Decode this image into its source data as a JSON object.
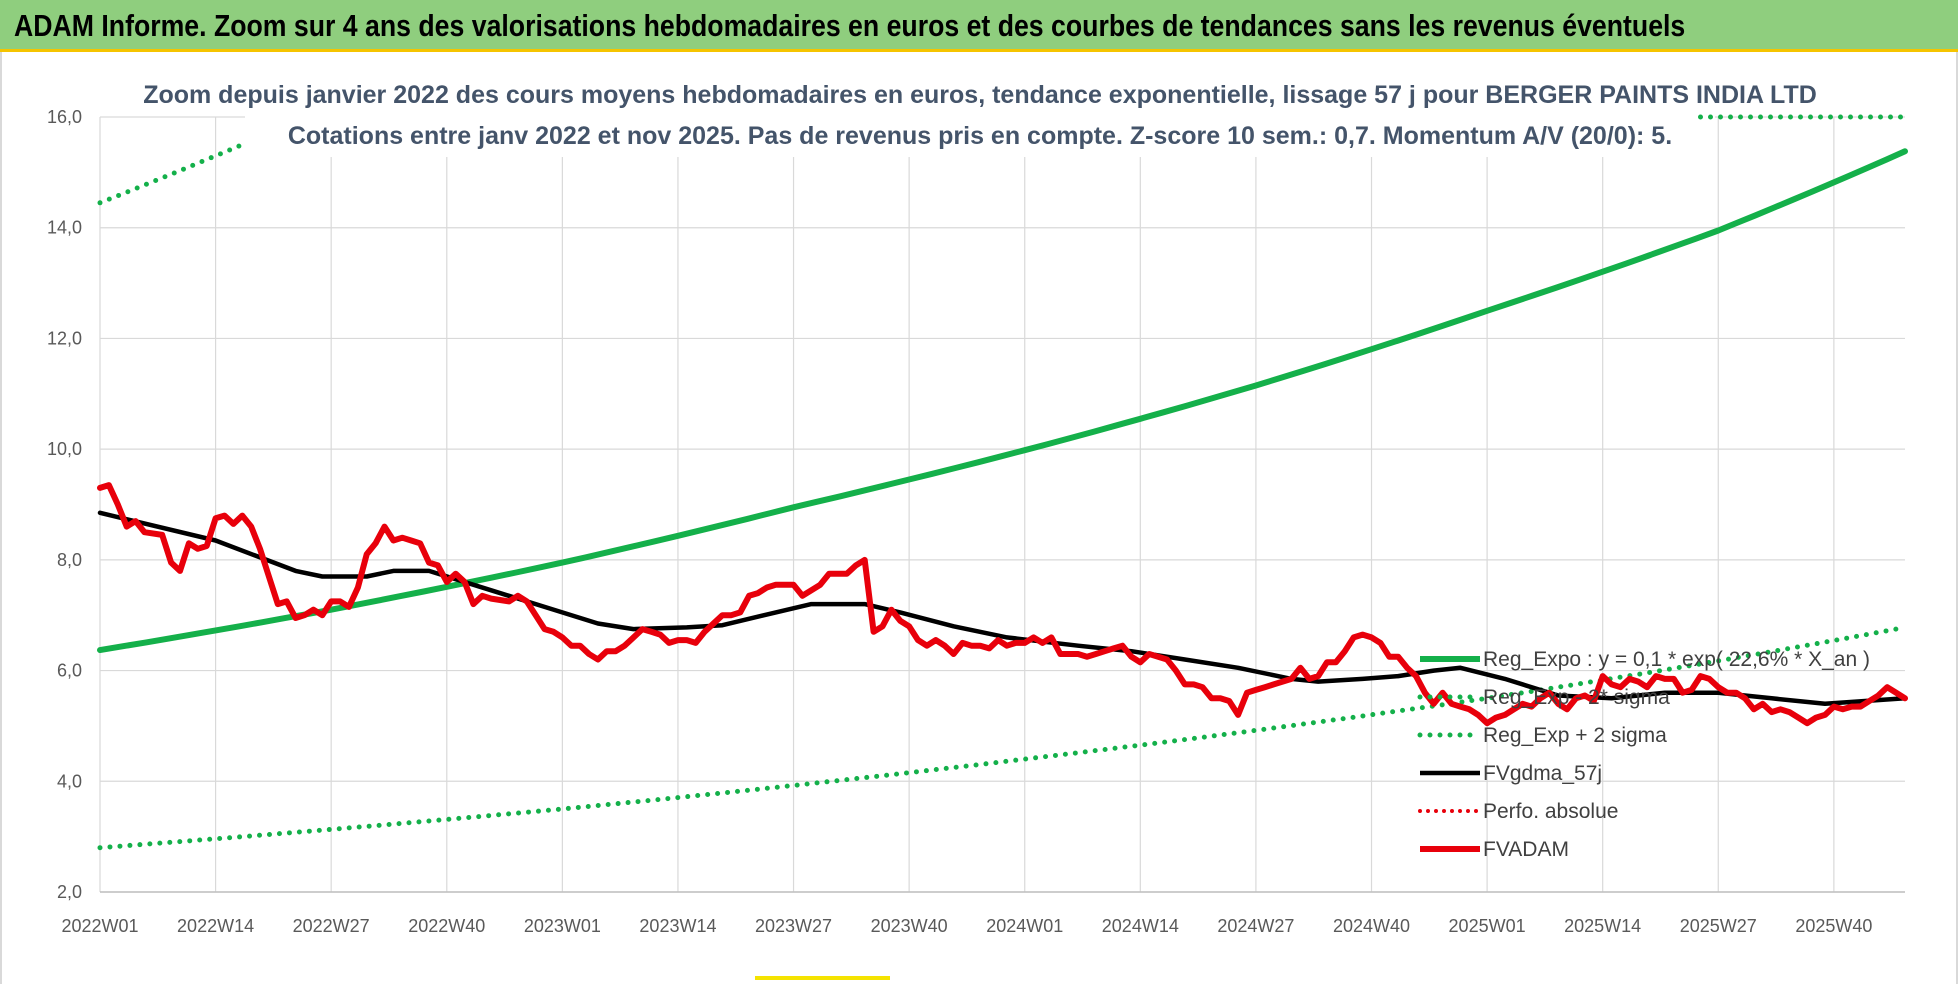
{
  "banner": {
    "title": "ADAM Informe. Zoom sur 4 ans des valorisations hebdomadaires en euros et des courbes de tendances sans les revenus éventuels"
  },
  "colors": {
    "banner_bg": "#8fce7e",
    "banner_border": "#f5c400",
    "green": "#14b04a",
    "red": "#e8000b",
    "black": "#000000",
    "subtitle": "#44546a",
    "grid": "#d9d9d9"
  },
  "chart_data": {
    "type": "line",
    "title_line1": "Zoom depuis janvier 2022 des cours moyens hebdomadaires en euros, tendance exponentielle, lissage 57 j pour BERGER PAINTS INDIA LTD",
    "title_line2": "Cotations entre janv 2022 et nov 2025. Pas de revenus pris en compte. Z-score 10 sem.: 0,7. Momentum A/V (20/0): 5.",
    "ylim": [
      2,
      16
    ],
    "y_ticks": [
      "2,0",
      "4,0",
      "6,0",
      "8,0",
      "10,0",
      "12,0",
      "14,0",
      "16,0"
    ],
    "x_range_weeks": [
      0,
      203
    ],
    "x_ticks": [
      "2022W01",
      "2022W14",
      "2022W27",
      "2022W40",
      "2023W01",
      "2023W14",
      "2023W27",
      "2023W40",
      "2024W01",
      "2024W14",
      "2024W27",
      "2024W40",
      "2025W01",
      "2025W14",
      "2025W27",
      "2025W40"
    ],
    "legend_position": "right",
    "series": [
      {
        "name": "Reg_Expo : y = 0,1 * exp( 22,6% * X_an )",
        "style": "solid-green",
        "points": [
          [
            0,
            6.37
          ],
          [
            26,
            7.1
          ],
          [
            52,
            7.95
          ],
          [
            78,
            8.95
          ],
          [
            104,
            9.98
          ],
          [
            130,
            11.15
          ],
          [
            156,
            12.5
          ],
          [
            182,
            13.95
          ],
          [
            203,
            15.38
          ]
        ]
      },
      {
        "name": "Reg_Exp - 2* sigma",
        "style": "dotted-green",
        "points": [
          [
            0,
            2.8
          ],
          [
            52,
            3.5
          ],
          [
            104,
            4.4
          ],
          [
            156,
            5.5
          ],
          [
            203,
            6.78
          ]
        ]
      },
      {
        "name": "Reg_Exp + 2 sigma",
        "style": "dotted-green",
        "points": [
          [
            0,
            14.45
          ],
          [
            16,
            15.5
          ]
        ],
        "points_upper_segment": [
          [
            180,
            16.0
          ],
          [
            203,
            16.0
          ]
        ]
      },
      {
        "name": "FVgdma_57j",
        "style": "solid-black",
        "points": [
          [
            0,
            8.85
          ],
          [
            13,
            8.35
          ],
          [
            22,
            7.8
          ],
          [
            25,
            7.7
          ],
          [
            30,
            7.7
          ],
          [
            33,
            7.8
          ],
          [
            37,
            7.8
          ],
          [
            44,
            7.45
          ],
          [
            50,
            7.15
          ],
          [
            56,
            6.85
          ],
          [
            60,
            6.75
          ],
          [
            66,
            6.78
          ],
          [
            70,
            6.82
          ],
          [
            76,
            7.05
          ],
          [
            80,
            7.2
          ],
          [
            86,
            7.2
          ],
          [
            90,
            7.05
          ],
          [
            96,
            6.8
          ],
          [
            102,
            6.6
          ],
          [
            110,
            6.45
          ],
          [
            116,
            6.35
          ],
          [
            122,
            6.2
          ],
          [
            128,
            6.05
          ],
          [
            134,
            5.85
          ],
          [
            137,
            5.8
          ],
          [
            142,
            5.85
          ],
          [
            146,
            5.9
          ],
          [
            150,
            6.0
          ],
          [
            153,
            6.05
          ],
          [
            158,
            5.85
          ],
          [
            164,
            5.55
          ],
          [
            170,
            5.5
          ],
          [
            176,
            5.6
          ],
          [
            182,
            5.6
          ],
          [
            188,
            5.5
          ],
          [
            194,
            5.4
          ],
          [
            203,
            5.5
          ]
        ]
      },
      {
        "name": "Perfo. absolue",
        "style": "dotted-red",
        "points": []
      },
      {
        "name": "FVADAM",
        "style": "solid-red",
        "points": [
          [
            0,
            9.3
          ],
          [
            1,
            9.35
          ],
          [
            2,
            9.0
          ],
          [
            3,
            8.6
          ],
          [
            4,
            8.7
          ],
          [
            5,
            8.5
          ],
          [
            7,
            8.45
          ],
          [
            8,
            7.95
          ],
          [
            9,
            7.8
          ],
          [
            10,
            8.3
          ],
          [
            11,
            8.2
          ],
          [
            12,
            8.25
          ],
          [
            13,
            8.75
          ],
          [
            14,
            8.8
          ],
          [
            15,
            8.65
          ],
          [
            16,
            8.8
          ],
          [
            17,
            8.6
          ],
          [
            18,
            8.2
          ],
          [
            19,
            7.7
          ],
          [
            20,
            7.2
          ],
          [
            21,
            7.25
          ],
          [
            22,
            6.95
          ],
          [
            23,
            7.0
          ],
          [
            24,
            7.1
          ],
          [
            25,
            7.0
          ],
          [
            26,
            7.25
          ],
          [
            27,
            7.25
          ],
          [
            28,
            7.15
          ],
          [
            29,
            7.5
          ],
          [
            30,
            8.1
          ],
          [
            31,
            8.3
          ],
          [
            32,
            8.6
          ],
          [
            33,
            8.35
          ],
          [
            34,
            8.4
          ],
          [
            35,
            8.35
          ],
          [
            36,
            8.3
          ],
          [
            37,
            7.95
          ],
          [
            38,
            7.9
          ],
          [
            39,
            7.6
          ],
          [
            40,
            7.75
          ],
          [
            41,
            7.6
          ],
          [
            42,
            7.2
          ],
          [
            43,
            7.35
          ],
          [
            44,
            7.3
          ],
          [
            46,
            7.25
          ],
          [
            47,
            7.35
          ],
          [
            48,
            7.25
          ],
          [
            49,
            7.0
          ],
          [
            50,
            6.75
          ],
          [
            51,
            6.7
          ],
          [
            52,
            6.6
          ],
          [
            53,
            6.45
          ],
          [
            54,
            6.45
          ],
          [
            55,
            6.3
          ],
          [
            56,
            6.2
          ],
          [
            57,
            6.35
          ],
          [
            58,
            6.35
          ],
          [
            59,
            6.45
          ],
          [
            60,
            6.6
          ],
          [
            61,
            6.75
          ],
          [
            62,
            6.7
          ],
          [
            63,
            6.65
          ],
          [
            64,
            6.5
          ],
          [
            65,
            6.55
          ],
          [
            66,
            6.55
          ],
          [
            67,
            6.5
          ],
          [
            68,
            6.7
          ],
          [
            69,
            6.85
          ],
          [
            70,
            7.0
          ],
          [
            71,
            7.0
          ],
          [
            72,
            7.05
          ],
          [
            73,
            7.35
          ],
          [
            74,
            7.4
          ],
          [
            75,
            7.5
          ],
          [
            76,
            7.55
          ],
          [
            77,
            7.55
          ],
          [
            78,
            7.55
          ],
          [
            79,
            7.35
          ],
          [
            80,
            7.45
          ],
          [
            81,
            7.55
          ],
          [
            82,
            7.75
          ],
          [
            83,
            7.75
          ],
          [
            84,
            7.75
          ],
          [
            85,
            7.9
          ],
          [
            86,
            8.0
          ],
          [
            87,
            6.7
          ],
          [
            88,
            6.8
          ],
          [
            89,
            7.1
          ],
          [
            90,
            6.9
          ],
          [
            91,
            6.8
          ],
          [
            92,
            6.55
          ],
          [
            93,
            6.45
          ],
          [
            94,
            6.55
          ],
          [
            95,
            6.45
          ],
          [
            96,
            6.3
          ],
          [
            97,
            6.5
          ],
          [
            98,
            6.45
          ],
          [
            99,
            6.45
          ],
          [
            100,
            6.4
          ],
          [
            101,
            6.55
          ],
          [
            102,
            6.45
          ],
          [
            103,
            6.5
          ],
          [
            104,
            6.5
          ],
          [
            105,
            6.6
          ],
          [
            106,
            6.5
          ],
          [
            107,
            6.6
          ],
          [
            108,
            6.3
          ],
          [
            109,
            6.3
          ],
          [
            110,
            6.3
          ],
          [
            111,
            6.25
          ],
          [
            112,
            6.3
          ],
          [
            113,
            6.35
          ],
          [
            114,
            6.4
          ],
          [
            115,
            6.45
          ],
          [
            116,
            6.25
          ],
          [
            117,
            6.15
          ],
          [
            118,
            6.3
          ],
          [
            119,
            6.25
          ],
          [
            120,
            6.2
          ],
          [
            121,
            6.0
          ],
          [
            122,
            5.75
          ],
          [
            123,
            5.75
          ],
          [
            124,
            5.7
          ],
          [
            125,
            5.5
          ],
          [
            126,
            5.5
          ],
          [
            127,
            5.45
          ],
          [
            128,
            5.2
          ],
          [
            129,
            5.6
          ],
          [
            130,
            5.65
          ],
          [
            131,
            5.7
          ],
          [
            132,
            5.75
          ],
          [
            133,
            5.8
          ],
          [
            134,
            5.85
          ],
          [
            135,
            6.05
          ],
          [
            136,
            5.85
          ],
          [
            137,
            5.9
          ],
          [
            138,
            6.15
          ],
          [
            139,
            6.15
          ],
          [
            140,
            6.35
          ],
          [
            141,
            6.6
          ],
          [
            142,
            6.65
          ],
          [
            143,
            6.6
          ],
          [
            144,
            6.5
          ],
          [
            145,
            6.25
          ],
          [
            146,
            6.25
          ],
          [
            147,
            6.05
          ],
          [
            148,
            5.9
          ],
          [
            149,
            5.6
          ],
          [
            150,
            5.4
          ],
          [
            151,
            5.6
          ],
          [
            152,
            5.4
          ],
          [
            153,
            5.35
          ],
          [
            154,
            5.3
          ],
          [
            155,
            5.2
          ],
          [
            156,
            5.05
          ],
          [
            157,
            5.15
          ],
          [
            158,
            5.2
          ],
          [
            159,
            5.3
          ],
          [
            160,
            5.4
          ],
          [
            161,
            5.35
          ],
          [
            162,
            5.5
          ],
          [
            163,
            5.6
          ],
          [
            164,
            5.4
          ],
          [
            165,
            5.3
          ],
          [
            166,
            5.5
          ],
          [
            167,
            5.55
          ],
          [
            168,
            5.45
          ],
          [
            169,
            5.9
          ],
          [
            170,
            5.75
          ],
          [
            171,
            5.7
          ],
          [
            172,
            5.85
          ],
          [
            173,
            5.8
          ],
          [
            174,
            5.7
          ],
          [
            175,
            5.9
          ],
          [
            176,
            5.85
          ],
          [
            177,
            5.85
          ],
          [
            178,
            5.6
          ],
          [
            179,
            5.65
          ],
          [
            180,
            5.9
          ],
          [
            181,
            5.85
          ],
          [
            182,
            5.7
          ],
          [
            183,
            5.6
          ],
          [
            184,
            5.6
          ],
          [
            185,
            5.5
          ],
          [
            186,
            5.3
          ],
          [
            187,
            5.4
          ],
          [
            188,
            5.25
          ],
          [
            189,
            5.3
          ],
          [
            190,
            5.25
          ],
          [
            191,
            5.15
          ],
          [
            192,
            5.05
          ],
          [
            193,
            5.15
          ],
          [
            194,
            5.2
          ],
          [
            195,
            5.35
          ],
          [
            196,
            5.3
          ],
          [
            197,
            5.35
          ],
          [
            198,
            5.35
          ],
          [
            199,
            5.45
          ],
          [
            200,
            5.55
          ],
          [
            201,
            5.7
          ],
          [
            202,
            5.6
          ],
          [
            203,
            5.5
          ]
        ]
      }
    ]
  }
}
